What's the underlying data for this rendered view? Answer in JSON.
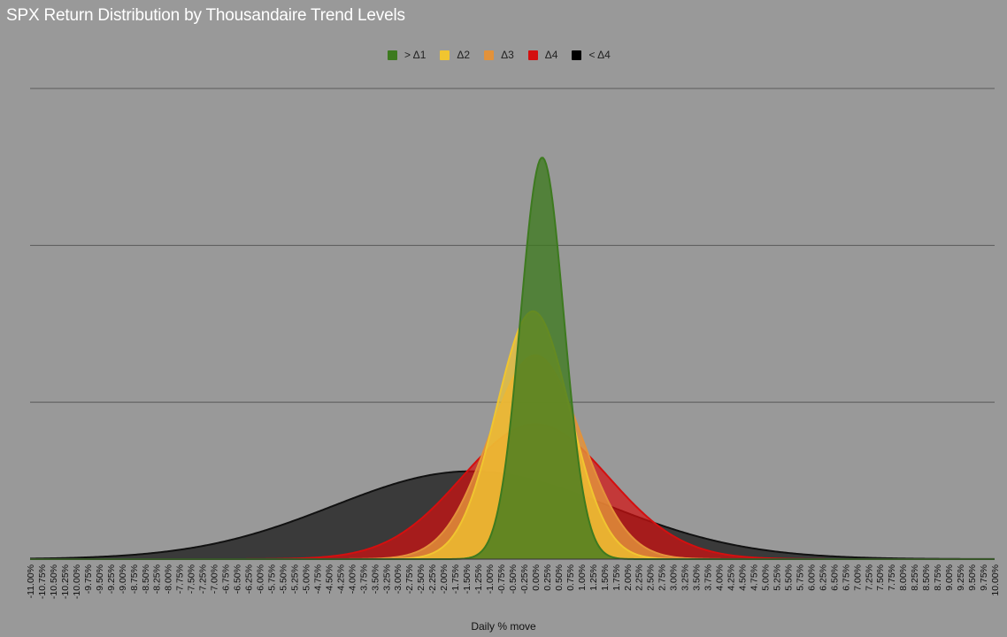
{
  "chart_data": {
    "type": "area",
    "title": "SPX Return Distribution by Thousandaire Trend Levels",
    "xlabel": "Daily % move",
    "ylabel": "",
    "xlim": [
      -11,
      10
    ],
    "ylim": [
      0,
      1.5
    ],
    "y_gridlines": [
      0.5,
      1.0,
      1.5
    ],
    "x_tick_step": 0.25,
    "legend_position": "top-center",
    "x_tick_labels": [
      "-11.00%",
      "-10.75%",
      "-10.50%",
      "-10.25%",
      "-10.00%",
      "-9.75%",
      "-9.50%",
      "-9.25%",
      "-9.00%",
      "-8.75%",
      "-8.50%",
      "-8.25%",
      "-8.00%",
      "-7.75%",
      "-7.50%",
      "-7.25%",
      "-7.00%",
      "-6.75%",
      "-6.50%",
      "-6.25%",
      "-6.00%",
      "-5.75%",
      "-5.50%",
      "-5.25%",
      "-5.00%",
      "-4.75%",
      "-4.50%",
      "-4.25%",
      "-4.00%",
      "-3.75%",
      "-3.50%",
      "-3.25%",
      "-3.00%",
      "-2.75%",
      "-2.50%",
      "-2.25%",
      "-2.00%",
      "-1.75%",
      "-1.50%",
      "-1.25%",
      "-1.00%",
      "-0.75%",
      "-0.50%",
      "-0.25%",
      "0.00%",
      "0.25%",
      "0.50%",
      "0.75%",
      "1.00%",
      "1.25%",
      "1.50%",
      "1.75%",
      "2.00%",
      "2.25%",
      "2.50%",
      "2.75%",
      "3.00%",
      "3.25%",
      "3.50%",
      "3.75%",
      "4.00%",
      "4.25%",
      "4.50%",
      "4.75%",
      "5.00%",
      "5.25%",
      "5.50%",
      "5.75%",
      "6.00%",
      "6.25%",
      "6.50%",
      "6.75%",
      "7.00%",
      "7.25%",
      "7.50%",
      "7.75%",
      "8.00%",
      "8.25%",
      "8.50%",
      "8.75%",
      "9.00%",
      "9.25%",
      "9.50%",
      "9.75%",
      "10.00%"
    ],
    "series": [
      {
        "name": "> Δ1",
        "color": "#3d7a1f",
        "fill_opacity": 0.78,
        "distribution": "normal",
        "mean": 0.15,
        "sd": 0.47,
        "peak": 1.28
      },
      {
        "name": "Δ2",
        "color": "#f0c530",
        "fill_opacity": 0.72,
        "distribution": "normal",
        "mean": -0.05,
        "sd": 0.8,
        "peak": 0.79
      },
      {
        "name": "Δ3",
        "color": "#e3923a",
        "fill_opacity": 0.82,
        "distribution": "normal",
        "mean": 0.0,
        "sd": 1.0,
        "peak": 0.65
      },
      {
        "name": "Δ4",
        "color": "#d40f0f",
        "fill_opacity": 0.7,
        "distribution": "normal",
        "mean": 0.0,
        "sd": 1.6,
        "peak": 0.43
      },
      {
        "name": "< Δ4",
        "color": "#111111",
        "fill_opacity": 0.7,
        "distribution": "normal",
        "mean": -1.4,
        "sd": 3.0,
        "peak": 0.28
      }
    ]
  }
}
